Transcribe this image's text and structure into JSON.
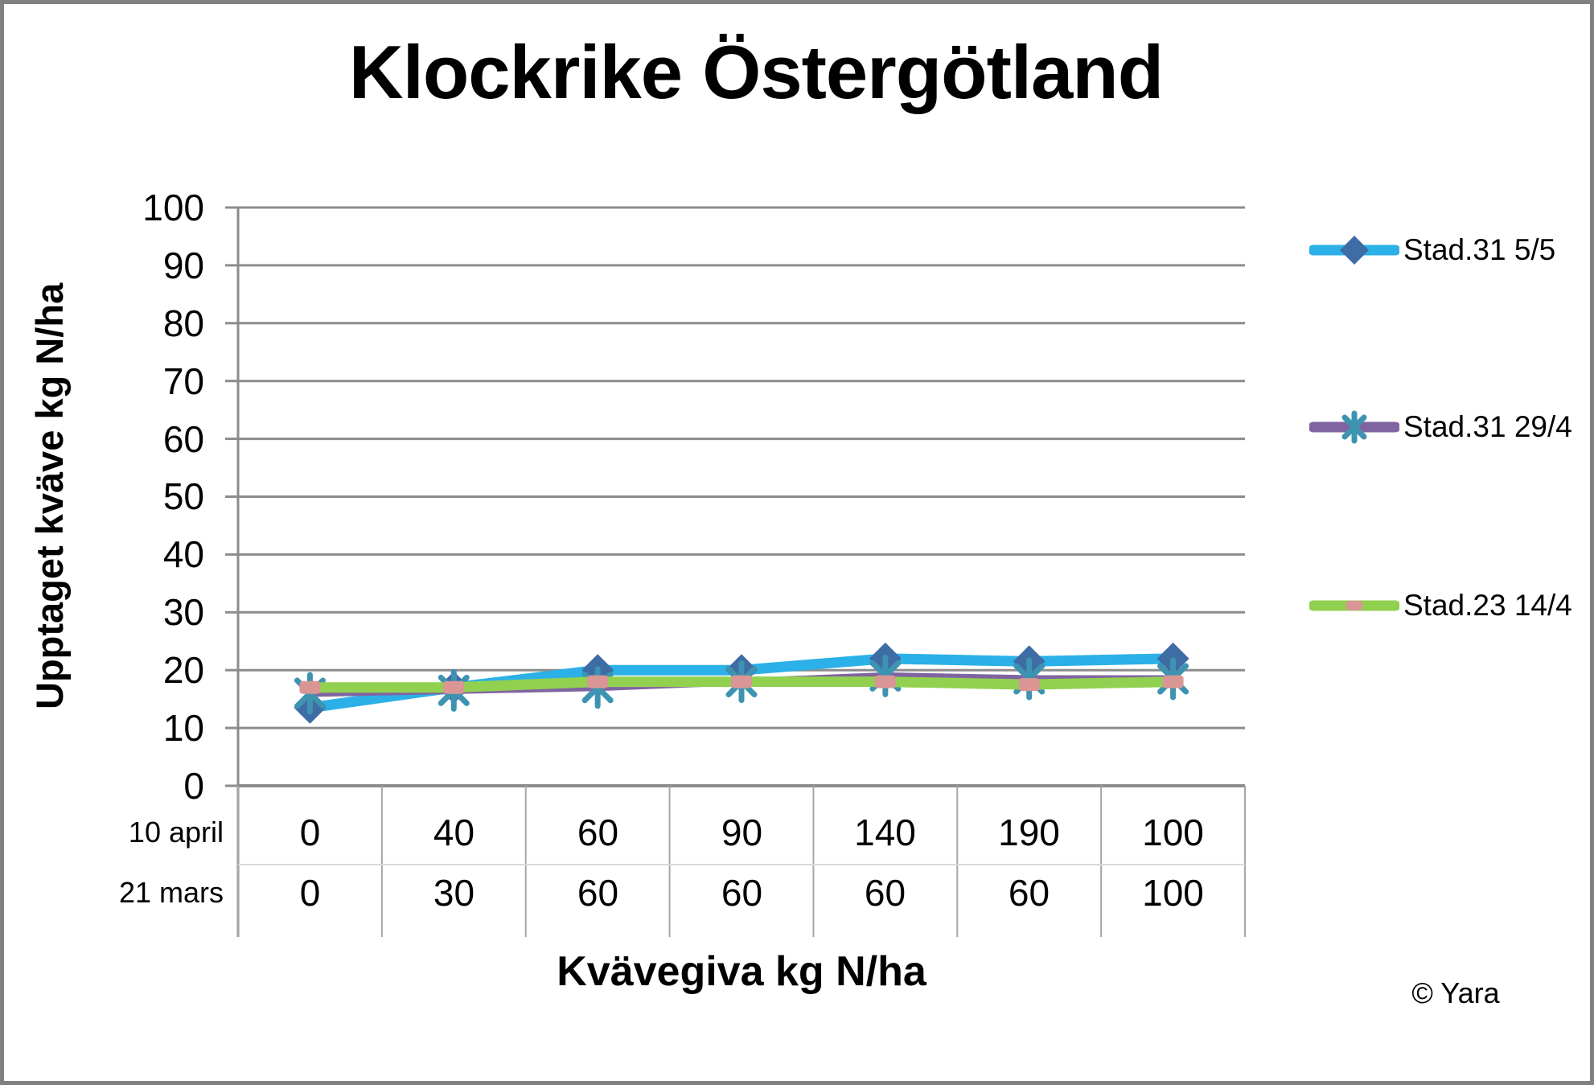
{
  "page": {
    "copyright": "© Yara"
  },
  "chart_data": {
    "type": "line",
    "title": "Klockrike Östergötland",
    "ylabel": "Upptaget kväve kg N/ha",
    "xlabel": "Kvävegiva kg N/ha",
    "ylim": [
      0,
      100
    ],
    "ytick_step": 10,
    "yticks": [
      100,
      90,
      80,
      70,
      60,
      50,
      40,
      30,
      20,
      10,
      0
    ],
    "grid": true,
    "legend_position": "right",
    "x_axis_table": {
      "rows": [
        {
          "label": "10 april",
          "values": [
            0,
            40,
            60,
            90,
            140,
            190,
            100
          ]
        },
        {
          "label": "21 mars",
          "values": [
            0,
            30,
            60,
            60,
            60,
            60,
            100
          ]
        }
      ]
    },
    "series": [
      {
        "name": "Stad.31 5/5",
        "marker": "diamond",
        "line_color": "#2BB0E8",
        "marker_color": "#3E6CA5",
        "line_width": 13,
        "values": [
          13.5,
          17,
          20,
          20,
          22,
          21.5,
          22
        ]
      },
      {
        "name": "Stad.31 29/4",
        "marker": "asterisk",
        "line_color": "#8064A2",
        "marker_color": "#3E93B0",
        "line_width": 9,
        "values": [
          16,
          16.5,
          17,
          18,
          19,
          18.5,
          18.5
        ]
      },
      {
        "name": "Stad.23 14/4",
        "marker": "square",
        "line_color": "#92D050",
        "marker_color": "#D99694",
        "line_width": 13,
        "values": [
          17,
          17,
          18,
          18,
          18,
          17.5,
          18
        ]
      }
    ],
    "colors": {
      "gridline": "#8C8C8C",
      "axis": "#8C8C8C",
      "table_divider": "#A6A6A6",
      "row_divider": "#D9D9D9",
      "border": "#808080"
    }
  }
}
